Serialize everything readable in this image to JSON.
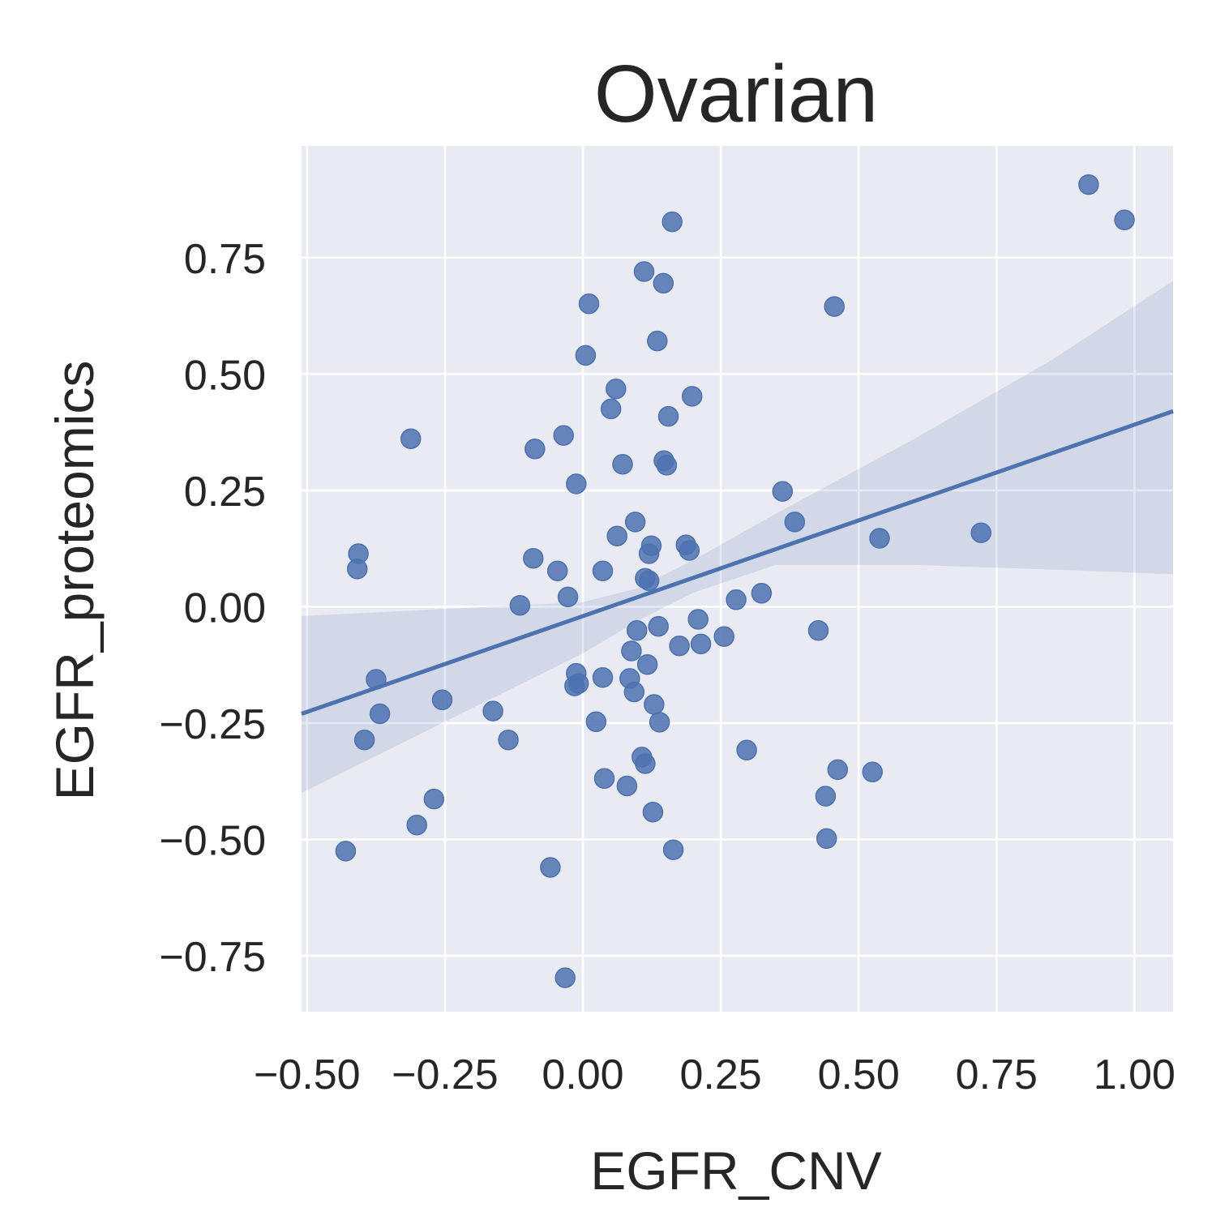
{
  "chart_data": {
    "type": "scatter",
    "title": "Ovarian",
    "xlabel": "EGFR_CNV",
    "ylabel": "EGFR_proteomics",
    "xlim": [
      -0.51,
      1.07
    ],
    "ylim": [
      -0.87,
      0.99
    ],
    "xticks": [
      -0.5,
      -0.25,
      0.0,
      0.25,
      0.5,
      0.75,
      1.0
    ],
    "xtick_labels": [
      "−0.50",
      "−0.25",
      "0.00",
      "0.25",
      "0.50",
      "0.75",
      "1.00"
    ],
    "yticks": [
      -0.75,
      -0.5,
      -0.25,
      0.0,
      0.25,
      0.5,
      0.75
    ],
    "ytick_labels": [
      "−0.75",
      "−0.50",
      "−0.25",
      "0.00",
      "0.25",
      "0.50",
      "0.75"
    ],
    "grid": true,
    "colors": {
      "point": "#4c72b0",
      "line": "#4c72b0",
      "band": "#4c72b0",
      "background": "#eaeaf2",
      "grid": "#ffffff"
    },
    "regression": {
      "start": [
        -0.51,
        -0.23
      ],
      "end": [
        1.07,
        0.42
      ]
    },
    "confidence_band": {
      "x": [
        -0.51,
        0.0,
        0.1,
        0.2,
        0.35,
        0.6,
        0.85,
        1.07
      ],
      "upper": [
        -0.02,
        0.01,
        0.04,
        0.1,
        0.2,
        0.36,
        0.53,
        0.7
      ],
      "lower": [
        -0.4,
        -0.1,
        -0.03,
        0.03,
        0.09,
        0.09,
        0.08,
        0.07
      ]
    },
    "points": [
      [
        0.917,
        0.907
      ],
      [
        0.982,
        0.831
      ],
      [
        0.162,
        0.827
      ],
      [
        0.111,
        0.72
      ],
      [
        0.146,
        0.695
      ],
      [
        0.011,
        0.651
      ],
      [
        0.456,
        0.645
      ],
      [
        0.135,
        0.571
      ],
      [
        0.005,
        0.54
      ],
      [
        0.06,
        0.468
      ],
      [
        0.198,
        0.452
      ],
      [
        0.051,
        0.425
      ],
      [
        0.155,
        0.409
      ],
      [
        -0.312,
        0.361
      ],
      [
        -0.035,
        0.368
      ],
      [
        -0.087,
        0.339
      ],
      [
        0.072,
        0.306
      ],
      [
        0.147,
        0.314
      ],
      [
        0.152,
        0.304
      ],
      [
        -0.012,
        0.264
      ],
      [
        0.362,
        0.248
      ],
      [
        0.095,
        0.182
      ],
      [
        0.384,
        0.182
      ],
      [
        0.062,
        0.152
      ],
      [
        0.124,
        0.131
      ],
      [
        0.12,
        0.114
      ],
      [
        0.187,
        0.133
      ],
      [
        0.193,
        0.121
      ],
      [
        0.538,
        0.147
      ],
      [
        0.722,
        0.159
      ],
      [
        -0.407,
        0.114
      ],
      [
        -0.409,
        0.081
      ],
      [
        -0.09,
        0.104
      ],
      [
        -0.046,
        0.077
      ],
      [
        0.036,
        0.077
      ],
      [
        0.113,
        0.061
      ],
      [
        0.12,
        0.056
      ],
      [
        -0.114,
        0.003
      ],
      [
        -0.027,
        0.021
      ],
      [
        0.278,
        0.015
      ],
      [
        0.324,
        0.029
      ],
      [
        0.137,
        -0.042
      ],
      [
        0.098,
        -0.051
      ],
      [
        0.209,
        -0.027
      ],
      [
        0.256,
        -0.064
      ],
      [
        0.427,
        -0.051
      ],
      [
        0.175,
        -0.084
      ],
      [
        0.214,
        -0.08
      ],
      [
        0.088,
        -0.095
      ],
      [
        -0.012,
        -0.143
      ],
      [
        0.036,
        -0.152
      ],
      [
        0.085,
        -0.154
      ],
      [
        0.117,
        -0.124
      ],
      [
        -0.375,
        -0.156
      ],
      [
        -0.008,
        -0.165
      ],
      [
        -0.015,
        -0.17
      ],
      [
        0.093,
        -0.183
      ],
      [
        -0.255,
        -0.2
      ],
      [
        0.129,
        -0.21
      ],
      [
        -0.368,
        -0.23
      ],
      [
        -0.163,
        -0.224
      ],
      [
        0.139,
        -0.248
      ],
      [
        0.024,
        -0.247
      ],
      [
        -0.396,
        -0.286
      ],
      [
        -0.135,
        -0.286
      ],
      [
        0.297,
        -0.308
      ],
      [
        0.107,
        -0.323
      ],
      [
        0.113,
        -0.337
      ],
      [
        0.462,
        -0.35
      ],
      [
        0.525,
        -0.355
      ],
      [
        0.039,
        -0.369
      ],
      [
        0.08,
        -0.385
      ],
      [
        0.44,
        -0.407
      ],
      [
        -0.27,
        -0.413
      ],
      [
        0.127,
        -0.441
      ],
      [
        -0.301,
        -0.469
      ],
      [
        0.442,
        -0.498
      ],
      [
        0.164,
        -0.522
      ],
      [
        -0.43,
        -0.525
      ],
      [
        -0.059,
        -0.56
      ],
      [
        -0.032,
        -0.797
      ]
    ]
  }
}
